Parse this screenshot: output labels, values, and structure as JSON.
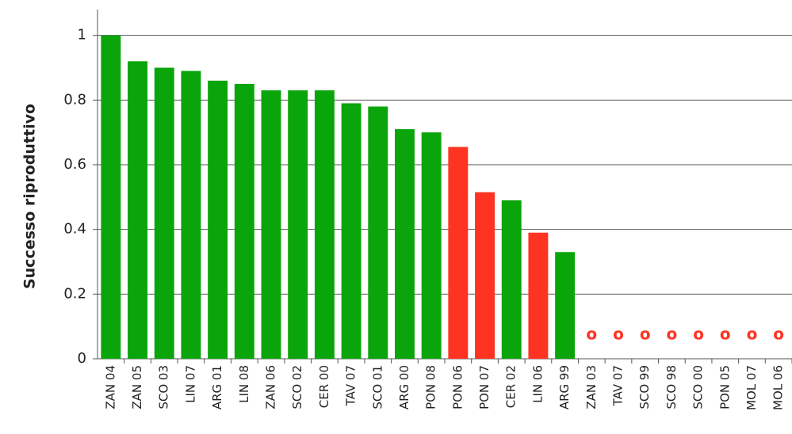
{
  "chart_data": {
    "type": "bar",
    "y_label": "Successo riproduttivo",
    "categories": [
      "ZAN 04",
      "ZAN 05",
      "SCO 03",
      "LIN 07",
      "ARG 01",
      "LIN 08",
      "ZAN 06",
      "SCO 02",
      "CER 00",
      "TAV 07",
      "SCO 01",
      "ARG 00",
      "PON 08",
      "PON 06",
      "PON 07",
      "CER 02",
      "LIN 06",
      "ARG 99",
      "ZAN 03",
      "TAV 07",
      "SCO 99",
      "SCO 98",
      "SCO 00",
      "PON 05",
      "MOL 07",
      "MOL 06"
    ],
    "values": [
      1.0,
      0.92,
      0.9,
      0.89,
      0.86,
      0.85,
      0.83,
      0.83,
      0.83,
      0.79,
      0.78,
      0.71,
      0.7,
      0.655,
      0.515,
      0.49,
      0.39,
      0.33,
      0,
      0,
      0,
      0,
      0,
      0,
      0,
      0
    ],
    "value_labels": [
      null,
      null,
      null,
      null,
      null,
      null,
      null,
      null,
      null,
      null,
      null,
      null,
      null,
      null,
      null,
      null,
      null,
      null,
      "o",
      "o",
      "o",
      "o",
      "o",
      "o",
      "o",
      "o"
    ],
    "colors": [
      "#0aa50a",
      "#0aa50a",
      "#0aa50a",
      "#0aa50a",
      "#0aa50a",
      "#0aa50a",
      "#0aa50a",
      "#0aa50a",
      "#0aa50a",
      "#0aa50a",
      "#0aa50a",
      "#0aa50a",
      "#0aa50a",
      "#ff3322",
      "#ff3322",
      "#0aa50a",
      "#ff3322",
      "#0aa50a",
      "#ff3322",
      "#ff3322",
      "#ff3322",
      "#ff3322",
      "#ff3322",
      "#ff3322",
      "#ff3322",
      "#ff3322"
    ],
    "ylim": [
      0,
      1.08
    ],
    "yticks": [
      0,
      0.2,
      0.4,
      0.6,
      0.8,
      1
    ],
    "grid": true
  }
}
